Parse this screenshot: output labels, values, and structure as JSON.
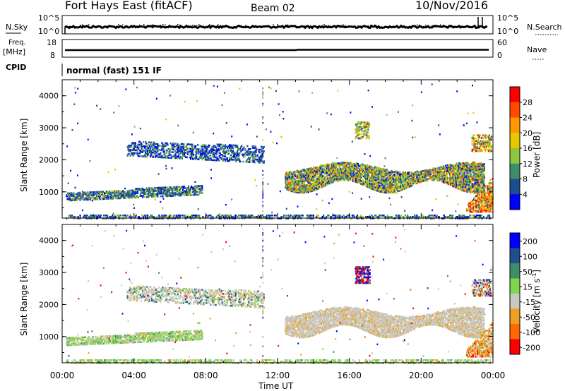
{
  "header": {
    "station": "Fort Hays East (fitACF)",
    "beam": "Beam 02",
    "date": "10/Nov/2016"
  },
  "top_panels": {
    "nsky_label": "N.Sky",
    "nsearch_label": "N.Search",
    "freq_label_1": "Freq.",
    "freq_label_2": "[MHz]",
    "nave_label": "Nave",
    "cpid_label": "CPID",
    "cpid_value": "normal (fast) 151 IF",
    "noise_ticks_left": [
      "10^5",
      "10^0"
    ],
    "noise_ticks_right": [
      "10^5",
      "10^0"
    ],
    "freq_ticks": [
      "18",
      "8"
    ],
    "nave_ticks": [
      "60",
      "0"
    ]
  },
  "chart_data": [
    {
      "type": "heatmap",
      "name": "power-panel",
      "ylabel": "Slant Range [km]",
      "yticks": [
        "4000",
        "3000",
        "2000",
        "1000"
      ],
      "ylim": [
        180,
        4500
      ],
      "xlim_hours": [
        0,
        24
      ],
      "colorbar_label": "Power [dB]",
      "colorbar_ticks": [
        "28",
        "24",
        "20",
        "16",
        "12",
        "8",
        "4"
      ],
      "colorbar_colors": [
        "#ff0000",
        "#ff4a00",
        "#ff9800",
        "#e6c800",
        "#8ec63f",
        "#3e8e6c",
        "#1c4d8c",
        "#0000ff"
      ]
    },
    {
      "type": "heatmap",
      "name": "velocity-panel",
      "ylabel": "Slant Range [km]",
      "yticks": [
        "4000",
        "3000",
        "2000",
        "1000"
      ],
      "ylim": [
        180,
        4500
      ],
      "xlim_hours": [
        0,
        24
      ],
      "colorbar_label_main": "Velocity [m s",
      "colorbar_label_sup": "-1",
      "colorbar_label_end": "]",
      "colorbar_ticks": [
        "200",
        "100",
        "50",
        "15",
        "-15",
        "-50",
        "-100",
        "-200"
      ],
      "colorbar_colors": [
        "#0000ff",
        "#1f4f8f",
        "#3e8e6c",
        "#7fd64a",
        "#c8c8c0",
        "#f0a020",
        "#ff6a00",
        "#ff0000"
      ]
    }
  ],
  "xaxis": {
    "ticks": [
      "00:00",
      "04:00",
      "08:00",
      "12:00",
      "16:00",
      "20:00",
      "00:00"
    ],
    "label": "Time UT"
  }
}
